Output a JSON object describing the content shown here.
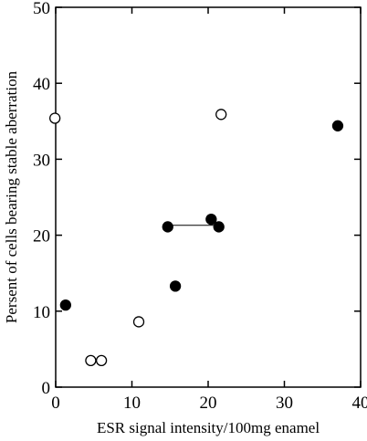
{
  "chart_data": {
    "type": "scatter",
    "title": "",
    "xlabel": "ESR signal intensity/100mg enamel",
    "ylabel": "Persent of cells bearing stable aberration",
    "xlim": [
      0,
      40
    ],
    "ylim": [
      0,
      50
    ],
    "x_ticks": [
      0,
      10,
      20,
      30,
      40
    ],
    "y_ticks": [
      0,
      10,
      20,
      30,
      40,
      50
    ],
    "grid": false,
    "series": [
      {
        "marker": "filled-circle",
        "color": "#000000",
        "points": [
          {
            "x": 1.3,
            "y": 10.8
          },
          {
            "x": 14.7,
            "y": 21.1
          },
          {
            "x": 15.7,
            "y": 13.3
          },
          {
            "x": 20.4,
            "y": 22.1
          },
          {
            "x": 21.4,
            "y": 21.1
          },
          {
            "x": 37.0,
            "y": 34.4
          }
        ]
      },
      {
        "marker": "open-circle",
        "color": "#000000",
        "points": [
          {
            "x": -0.1,
            "y": 35.4
          },
          {
            "x": 4.6,
            "y": 3.5
          },
          {
            "x": 6.0,
            "y": 3.5
          },
          {
            "x": 10.9,
            "y": 8.6
          },
          {
            "x": 21.7,
            "y": 35.9
          }
        ]
      }
    ],
    "connectors": [
      {
        "from": {
          "x": 14.7,
          "y": 21.3
        },
        "to": {
          "x": 21.4,
          "y": 21.3
        }
      }
    ]
  }
}
